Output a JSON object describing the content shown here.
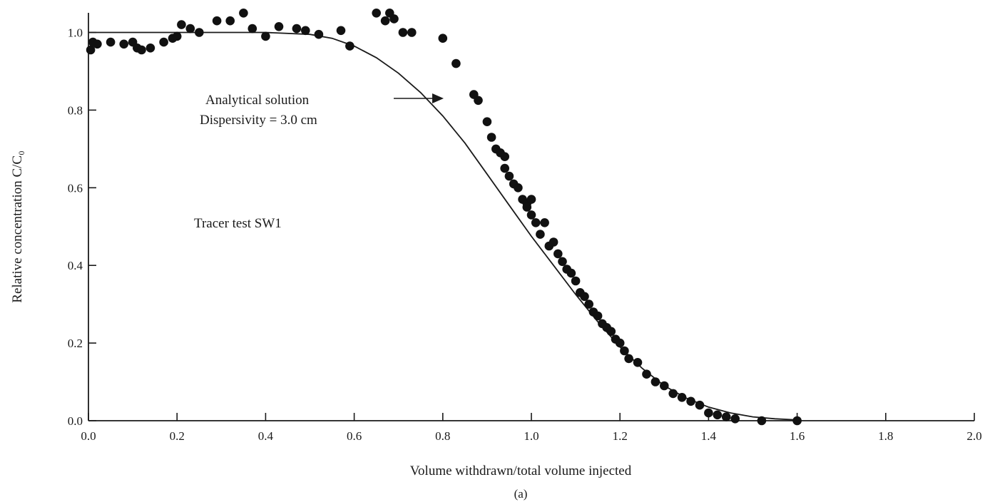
{
  "chart_data": {
    "type": "scatter",
    "xlabel": "Volume withdrawn/total volume injected",
    "ylabel": "Relative concentration C/C₀",
    "subcaption": "(a)",
    "xlim": [
      0.0,
      2.0
    ],
    "ylim": [
      0.0,
      1.05
    ],
    "x_ticks": [
      0.0,
      0.2,
      0.4,
      0.6,
      0.8,
      1.0,
      1.2,
      1.4,
      1.6,
      1.8,
      2.0
    ],
    "x_tick_labels": [
      "0.0",
      "0.2",
      "0.4",
      "0.6",
      "0.8",
      "1.0",
      "1.2",
      "1.4",
      "1.6",
      "1.8",
      "2.0"
    ],
    "y_ticks": [
      0.0,
      0.2,
      0.4,
      0.6,
      0.8,
      1.0
    ],
    "y_tick_labels": [
      "0.0",
      "0.2",
      "0.4",
      "0.6",
      "0.8",
      "1.0"
    ],
    "grid": false,
    "annotations": {
      "curve_label_line1": "Analytical solution",
      "curve_label_line2": "Dispersivity = 3.0 cm",
      "test_label": "Tracer test SW1"
    },
    "curve": {
      "name": "Analytical solution",
      "x": [
        0.0,
        0.1,
        0.2,
        0.3,
        0.4,
        0.5,
        0.55,
        0.6,
        0.65,
        0.7,
        0.75,
        0.8,
        0.85,
        0.9,
        0.95,
        1.0,
        1.05,
        1.1,
        1.15,
        1.2,
        1.25,
        1.3,
        1.35,
        1.4,
        1.45,
        1.5,
        1.55,
        1.6
      ],
      "y": [
        1.0,
        1.0,
        1.0,
        1.0,
        1.0,
        0.995,
        0.985,
        0.965,
        0.935,
        0.895,
        0.845,
        0.785,
        0.715,
        0.635,
        0.555,
        0.475,
        0.4,
        0.325,
        0.255,
        0.19,
        0.135,
        0.09,
        0.058,
        0.035,
        0.02,
        0.01,
        0.005,
        0.002
      ]
    },
    "points": {
      "name": "Tracer test SW1",
      "x": [
        0.005,
        0.01,
        0.02,
        0.05,
        0.08,
        0.1,
        0.11,
        0.12,
        0.14,
        0.17,
        0.19,
        0.2,
        0.21,
        0.23,
        0.25,
        0.29,
        0.32,
        0.35,
        0.37,
        0.4,
        0.43,
        0.47,
        0.49,
        0.52,
        0.57,
        0.59,
        0.65,
        0.67,
        0.68,
        0.69,
        0.71,
        0.73,
        0.8,
        0.83,
        0.87,
        0.88,
        0.9,
        0.91,
        0.92,
        0.93,
        0.94,
        0.94,
        0.95,
        0.96,
        0.97,
        0.98,
        0.99,
        0.99,
        1.0,
        1.0,
        1.01,
        1.02,
        1.03,
        1.04,
        1.05,
        1.06,
        1.07,
        1.08,
        1.09,
        1.1,
        1.11,
        1.12,
        1.13,
        1.14,
        1.15,
        1.16,
        1.17,
        1.18,
        1.19,
        1.2,
        1.21,
        1.22,
        1.24,
        1.26,
        1.28,
        1.3,
        1.32,
        1.34,
        1.36,
        1.38,
        1.4,
        1.42,
        1.44,
        1.46,
        1.52,
        1.6
      ],
      "y": [
        0.955,
        0.975,
        0.97,
        0.975,
        0.97,
        0.975,
        0.96,
        0.955,
        0.96,
        0.975,
        0.985,
        0.99,
        1.02,
        1.01,
        1.0,
        1.03,
        1.03,
        1.05,
        1.01,
        0.99,
        1.015,
        1.01,
        1.005,
        0.995,
        1.005,
        0.965,
        1.05,
        1.03,
        1.05,
        1.035,
        1.0,
        1.0,
        0.985,
        0.92,
        0.84,
        0.825,
        0.77,
        0.73,
        0.7,
        0.69,
        0.68,
        0.65,
        0.63,
        0.61,
        0.6,
        0.57,
        0.56,
        0.55,
        0.57,
        0.53,
        0.51,
        0.48,
        0.51,
        0.45,
        0.46,
        0.43,
        0.41,
        0.39,
        0.38,
        0.36,
        0.33,
        0.32,
        0.3,
        0.28,
        0.27,
        0.25,
        0.24,
        0.23,
        0.21,
        0.2,
        0.18,
        0.16,
        0.15,
        0.12,
        0.1,
        0.09,
        0.07,
        0.06,
        0.05,
        0.04,
        0.02,
        0.015,
        0.01,
        0.005,
        0.0,
        0.0
      ]
    }
  }
}
